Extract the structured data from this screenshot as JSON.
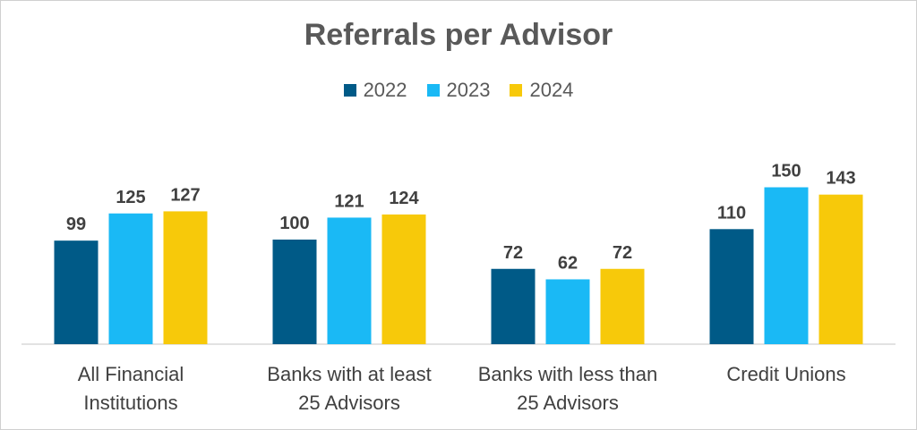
{
  "chart_data": {
    "type": "bar",
    "title": "Referrals per Advisor",
    "xlabel": "",
    "ylabel": "",
    "ylim": [
      0,
      160
    ],
    "grid": false,
    "legend_position": "top",
    "categories": [
      [
        "All Financial",
        "Institutions"
      ],
      [
        "Banks with at least",
        "25 Advisors"
      ],
      [
        "Banks with less than",
        "25 Advisors"
      ],
      [
        "Credit Unions"
      ]
    ],
    "series": [
      {
        "name": "2022",
        "color": "#005a87",
        "values": [
          99,
          100,
          72,
          110
        ]
      },
      {
        "name": "2023",
        "color": "#1ab9f5",
        "values": [
          125,
          121,
          62,
          150
        ]
      },
      {
        "name": "2024",
        "color": "#f7c90a",
        "values": [
          127,
          124,
          72,
          143
        ]
      }
    ]
  }
}
